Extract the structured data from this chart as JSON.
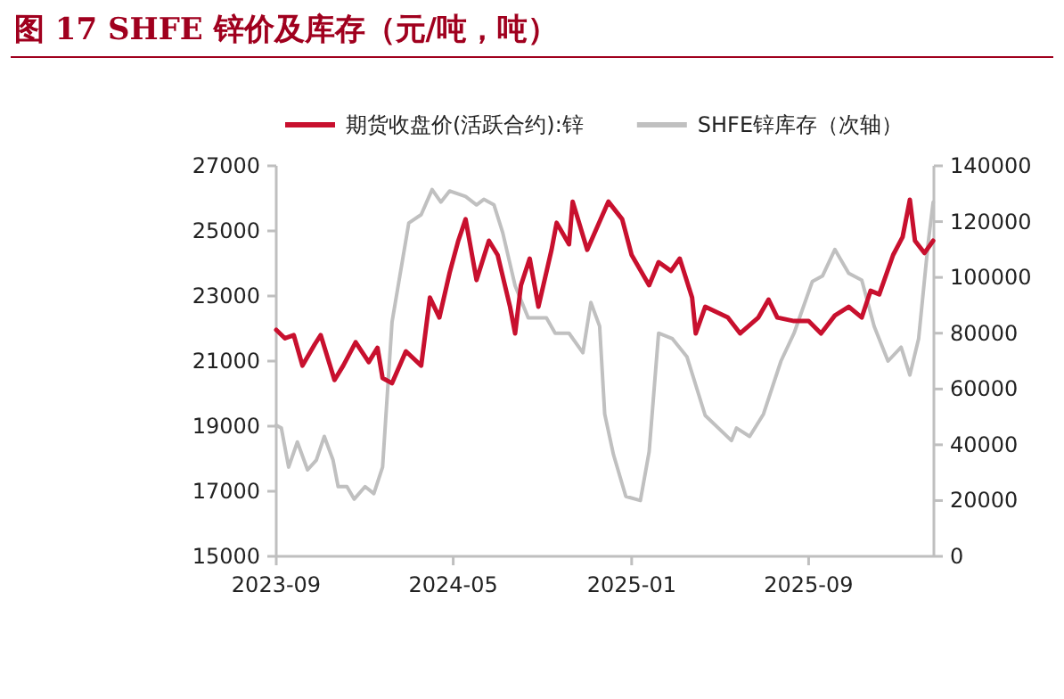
{
  "chart_data": {
    "type": "line",
    "title": "图 17 SHFE 锌价及库存（元/吨，吨）",
    "xlim": [
      "2023-09-01",
      "2026-02-20"
    ],
    "xticks": [
      "2023-09",
      "2024-05",
      "2025-01",
      "2025-09"
    ],
    "ylim": [
      15000,
      27000
    ],
    "yticks": [
      15000,
      17000,
      19000,
      21000,
      23000,
      25000,
      27000
    ],
    "y2lim": [
      0,
      140000
    ],
    "y2ticks": [
      0,
      20000,
      40000,
      60000,
      80000,
      100000,
      120000,
      140000
    ],
    "legend": "top",
    "grid": false,
    "series": [
      {
        "name": "期货收盘价(活跃合约):锌",
        "color": "#c8102e",
        "x": [
          "2023-09-01",
          "2023-09-13",
          "2023-09-25",
          "2023-10-07",
          "2023-10-24",
          "2023-11-01",
          "2023-11-20",
          "2023-12-02",
          "2023-12-19",
          "2024-01-06",
          "2024-01-18",
          "2024-01-25",
          "2024-02-07",
          "2024-02-26",
          "2024-03-18",
          "2024-03-30",
          "2024-04-12",
          "2024-04-26",
          "2024-05-08",
          "2024-05-18",
          "2024-06-02",
          "2024-06-19",
          "2024-07-01",
          "2024-07-18",
          "2024-07-25",
          "2024-08-02",
          "2024-08-14",
          "2024-08-26",
          "2024-09-13",
          "2024-09-20",
          "2024-10-07",
          "2024-10-12",
          "2024-11-01",
          "2024-11-30",
          "2024-12-19",
          "2025-01-01",
          "2025-01-25",
          "2025-02-07",
          "2025-02-24",
          "2025-03-08",
          "2025-03-25",
          "2025-03-30",
          "2025-04-12",
          "2025-05-13",
          "2025-05-30",
          "2025-06-24",
          "2025-07-08",
          "2025-07-20",
          "2025-08-12",
          "2025-09-01",
          "2025-09-18",
          "2025-10-07",
          "2025-10-26",
          "2025-11-13",
          "2025-11-25",
          "2025-12-07",
          "2025-12-26",
          "2026-01-08",
          "2026-01-18",
          "2026-01-25",
          "2026-02-07",
          "2026-02-19"
        ],
        "values": [
          21960,
          21700,
          21800,
          20860,
          21520,
          21800,
          20420,
          20860,
          21580,
          20970,
          21410,
          20480,
          20320,
          21300,
          20860,
          22950,
          22340,
          23710,
          24700,
          25360,
          23490,
          24700,
          24260,
          22670,
          21850,
          23330,
          24150,
          22670,
          24420,
          25250,
          24590,
          25900,
          24420,
          25900,
          25360,
          24260,
          23330,
          24040,
          23770,
          24150,
          22950,
          21850,
          22670,
          22340,
          21850,
          22340,
          22890,
          22340,
          22230,
          22230,
          21850,
          22400,
          22670,
          22340,
          23160,
          23050,
          24260,
          24810,
          25960,
          24700,
          24320,
          24700
        ]
      },
      {
        "name": "SHFE锌库存（次轴）",
        "color": "#c0c0c0",
        "axis": "y2",
        "x": [
          "2023-09-01",
          "2023-09-08",
          "2023-09-18",
          "2023-09-30",
          "2023-10-14",
          "2023-10-26",
          "2023-11-06",
          "2023-11-18",
          "2023-11-25",
          "2023-12-07",
          "2023-12-17",
          "2024-01-01",
          "2024-01-13",
          "2024-01-25",
          "2024-02-07",
          "2024-03-01",
          "2024-03-18",
          "2024-04-02",
          "2024-04-14",
          "2024-04-26",
          "2024-05-18",
          "2024-06-02",
          "2024-06-12",
          "2024-06-26",
          "2024-07-08",
          "2024-07-25",
          "2024-08-12",
          "2024-09-06",
          "2024-09-18",
          "2024-10-07",
          "2024-10-26",
          "2024-11-06",
          "2024-11-18",
          "2024-11-25",
          "2024-12-07",
          "2024-12-24",
          "2025-01-13",
          "2025-01-25",
          "2025-02-07",
          "2025-02-26",
          "2025-03-18",
          "2025-04-12",
          "2025-05-18",
          "2025-05-25",
          "2025-06-12",
          "2025-07-01",
          "2025-07-25",
          "2025-08-12",
          "2025-09-06",
          "2025-09-20",
          "2025-10-07",
          "2025-10-26",
          "2025-11-13",
          "2025-11-30",
          "2025-12-19",
          "2026-01-06",
          "2026-01-18",
          "2026-01-30",
          "2026-02-12",
          "2026-02-19"
        ],
        "values": [
          47000,
          46000,
          32000,
          41000,
          31000,
          34500,
          43000,
          34500,
          25000,
          25000,
          20500,
          25000,
          22500,
          32000,
          84000,
          119500,
          122500,
          131500,
          127000,
          131000,
          129000,
          126000,
          128000,
          126000,
          116000,
          97000,
          85500,
          85500,
          80000,
          80000,
          73000,
          91000,
          82500,
          51000,
          36500,
          21500,
          20000,
          37500,
          80000,
          78000,
          71500,
          50500,
          41500,
          46000,
          43000,
          51000,
          70000,
          80000,
          98500,
          100500,
          110000,
          101500,
          99000,
          82500,
          70000,
          75000,
          65000,
          78000,
          112000,
          127000
        ]
      }
    ]
  }
}
